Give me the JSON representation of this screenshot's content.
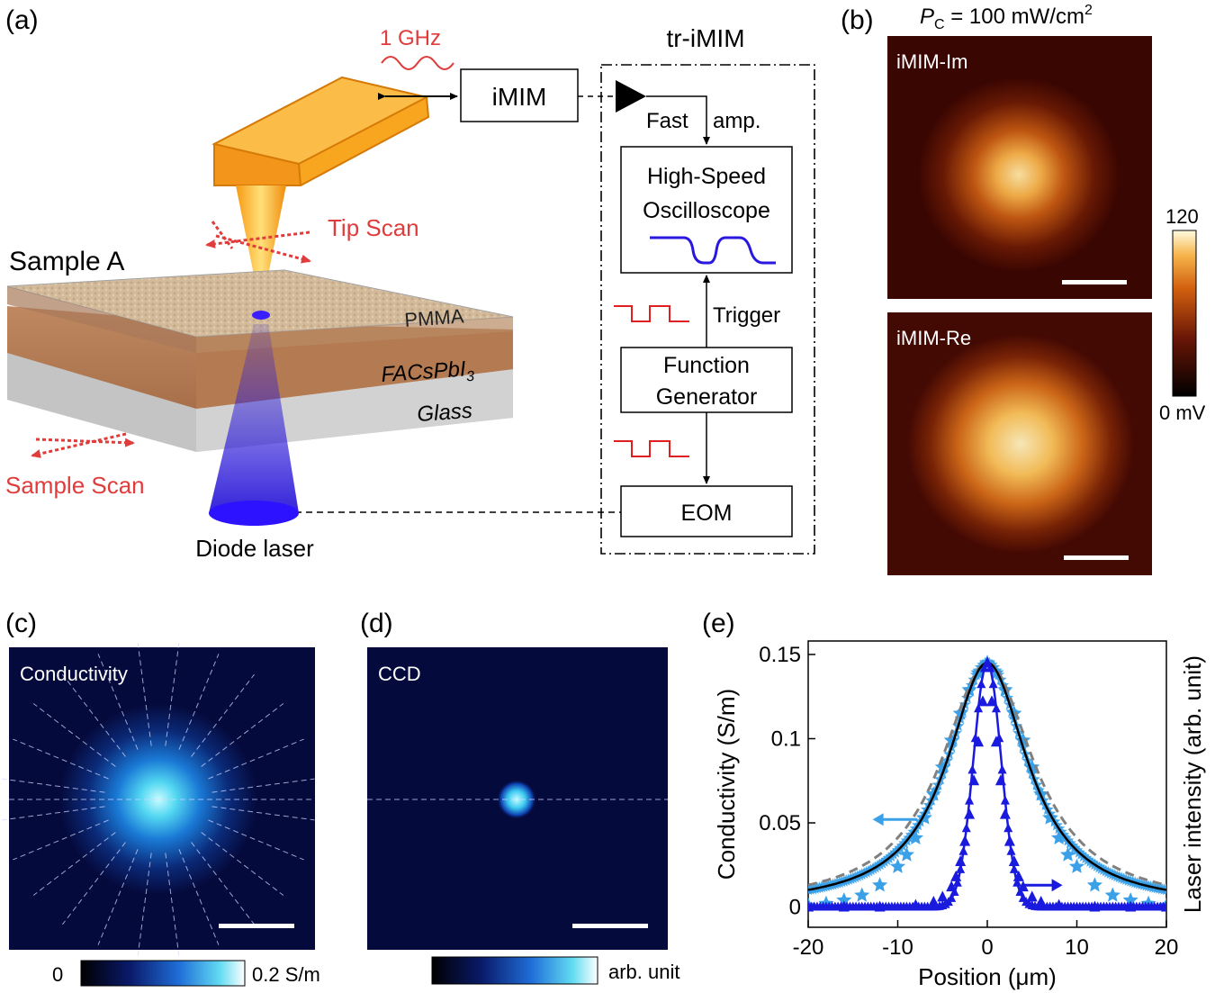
{
  "panels": {
    "a": {
      "label": "(a)",
      "freq_label": "1 GHz",
      "imim_box": "iMIM",
      "tr_title": "tr-iMIM",
      "fast_amp": "Fast",
      "fast_amp2": "amp.",
      "osc_line1": "High-Speed",
      "osc_line2": "Oscilloscope",
      "trigger": "Trigger",
      "fg_line1": "Function",
      "fg_line2": "Generator",
      "eom": "EOM",
      "sample_title": "Sample A",
      "tip_scan": "Tip Scan",
      "sample_scan": "Sample Scan",
      "layer_pmma": "PMMA",
      "layer_fa": "FACsPbI",
      "layer_fa_sub": "3",
      "layer_glass": "Glass",
      "diode": "Diode laser"
    },
    "b": {
      "label": "(b)",
      "power_sym": "P",
      "power_sub": "C",
      "power_val": " = 100 mW/cm",
      "power_sup": "2",
      "img_top": "iMIM-Im",
      "img_bottom": "iMIM-Re",
      "cb_max": "120",
      "cb_min": "0 mV"
    },
    "c": {
      "label": "(c)",
      "title": "Conductivity",
      "cb_min": "0",
      "cb_max": "0.2 S/m"
    },
    "d": {
      "label": "(d)",
      "title": "CCD",
      "cb_label": "arb. unit"
    },
    "e": {
      "label": "(e)"
    }
  },
  "colors": {
    "red_label": "#e03c3c",
    "cantilever": "#f7a21b",
    "laser_blue": "#1f17d6",
    "scope_trace": "#2a17e0",
    "cond_points": "#3aa0e8",
    "laser_points": "#1a1adf",
    "fit": "#000000",
    "fit_dashed": "#808080"
  },
  "chart_data": {
    "type": "scatter",
    "xlabel": "Position (μm)",
    "ylabel": "Conductivity (S/m)",
    "ylabel_right": "Laser intensity (arb. unit)",
    "xlim": [
      -20,
      20
    ],
    "ylim": [
      -0.012,
      0.158
    ],
    "xticks": [
      -20,
      -10,
      0,
      10,
      20
    ],
    "xtick_labels": [
      "-20",
      "-10",
      "0",
      "10",
      "20"
    ],
    "yticks": [
      0,
      0.05,
      0.1,
      0.15
    ],
    "ytick_labels": [
      "0",
      "0.05",
      "0.1",
      "0.15"
    ],
    "series": [
      {
        "name": "Conductivity",
        "marker": "star",
        "x": [
          -20,
          -18,
          -16,
          -14,
          -12,
          -10,
          -9,
          -8,
          -7,
          -6,
          -5,
          -4,
          -3,
          -2,
          -1,
          0,
          1,
          2,
          3,
          4,
          5,
          6,
          7,
          8,
          9,
          10,
          12,
          14,
          16,
          18,
          20
        ],
        "y": [
          0.001,
          0.002,
          0.004,
          0.007,
          0.013,
          0.024,
          0.031,
          0.041,
          0.053,
          0.067,
          0.083,
          0.099,
          0.115,
          0.129,
          0.139,
          0.145,
          0.139,
          0.129,
          0.115,
          0.099,
          0.083,
          0.067,
          0.053,
          0.041,
          0.031,
          0.024,
          0.013,
          0.007,
          0.004,
          0.002,
          0.001
        ]
      },
      {
        "name": "Laser intensity",
        "marker": "triangle",
        "x": [
          -20,
          -16,
          -12,
          -8,
          -6,
          -5,
          -4,
          -3.5,
          -3,
          -2.5,
          -2,
          -1.5,
          -1,
          -0.5,
          0,
          0.5,
          1,
          1.5,
          2,
          2.5,
          3,
          3.5,
          4,
          5,
          6,
          8,
          12,
          16,
          20
        ],
        "y": [
          0.0,
          0.0,
          0.0,
          0.001,
          0.003,
          0.006,
          0.012,
          0.018,
          0.027,
          0.039,
          0.055,
          0.075,
          0.098,
          0.122,
          0.145,
          0.122,
          0.098,
          0.075,
          0.055,
          0.039,
          0.027,
          0.018,
          0.012,
          0.006,
          0.003,
          0.001,
          0.0,
          0.0,
          0.0
        ]
      }
    ],
    "fits": [
      {
        "name": "fit",
        "style": "solid",
        "gamma": 5.5,
        "amplitude": 0.145
      },
      {
        "name": "fit-dashed",
        "style": "dashed",
        "gamma": 6.3,
        "amplitude": 0.145
      },
      {
        "name": "laser-fit",
        "style": "solid",
        "sigma": 1.55,
        "amplitude": 0.145
      }
    ]
  }
}
